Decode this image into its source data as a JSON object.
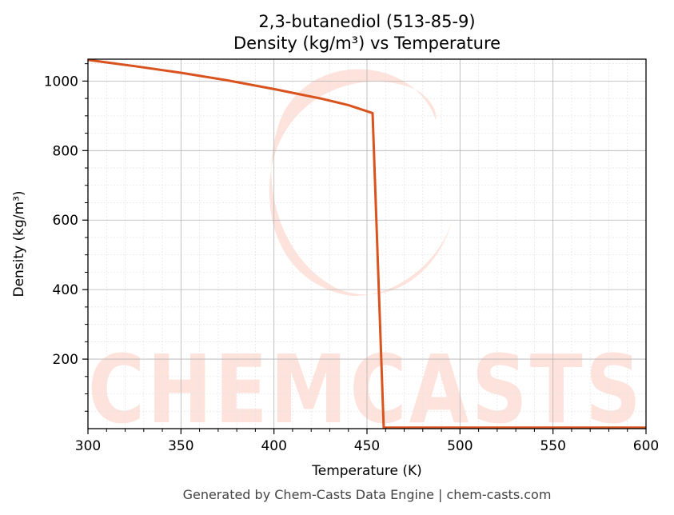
{
  "chart_data": {
    "type": "line",
    "title": "2,3-butanediol (513-85-9)",
    "subtitle": "Density (kg/m³) vs Temperature",
    "xlabel": "Temperature (K)",
    "ylabel": "Density (kg/m³)",
    "xlim": [
      300,
      600
    ],
    "ylim": [
      0,
      1063
    ],
    "xticks": [
      300,
      350,
      400,
      450,
      500,
      550,
      600
    ],
    "yticks": [
      200,
      400,
      600,
      800,
      1000
    ],
    "grid": true,
    "line_color": "#d9531e",
    "series": [
      {
        "x": [
          300,
          325,
          350,
          375,
          400,
          425,
          440,
          453,
          459,
          460,
          500,
          550,
          600
        ],
        "y": [
          1061,
          1043,
          1024,
          1002,
          977,
          950,
          931,
          908,
          3,
          3,
          3,
          3,
          3
        ]
      }
    ]
  },
  "watermark": {
    "text": "CHEMCASTS",
    "color": "#fde3dc"
  },
  "footer": "Generated by Chem-Casts Data Engine | chem-casts.com"
}
